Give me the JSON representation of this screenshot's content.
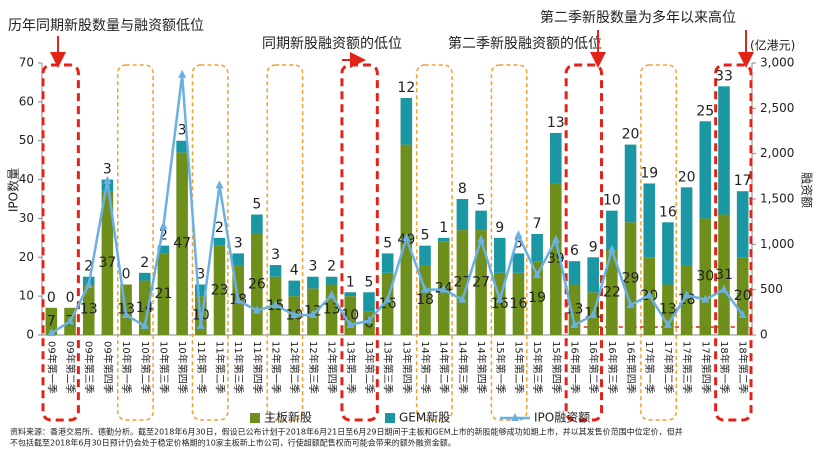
{
  "chart_data": {
    "type": "bar",
    "annotations": [
      "历年同期新股数量与融资额低位",
      "同期新股融资额的低位",
      "第二季新股融资额的低位",
      "第二季新股数量为多年以来高位"
    ],
    "ylabel": "IPO数量",
    "y2label": "融资额",
    "y2unit": "(亿港元)",
    "source": [
      "资料来源：香港交易所、德勤分析。截至2018年6月30日，假设已公布计划于2018年6月21日至6月29日期间于主板和GEM上市的新股能够成功如期上市，并以其发售价范围中位定价，但并",
      "不包括截至2018年6月30日预计仍会处于稳定价格期的10家主板新上市公司，行使超额配售权而可能会带来的额外融资金额。"
    ],
    "categories": [
      "09年第一季",
      "09年第二季",
      "09年第三季",
      "09年第四季",
      "10年第一季",
      "10年第二季",
      "10年第三季",
      "10年第四季",
      "11年第一季",
      "11年第二季",
      "11年第三季",
      "11年第四季",
      "12年第一季",
      "12年第二季",
      "12年第三季",
      "12年第四季",
      "13年第一季",
      "13年第二季",
      "13年第三季",
      "13年第四季",
      "14年第一季",
      "14年第二季",
      "14年第三季",
      "14年第四季",
      "15年第一季",
      "15年第二季",
      "15年第三季",
      "15年第四季",
      "16年第一季",
      "16年第二季",
      "16年第三季",
      "16年第四季",
      "17年第一季",
      "17年第二季",
      "17年第三季",
      "17年第四季",
      "18年第一季",
      "18年第二季"
    ],
    "series": [
      {
        "name": "主板新股",
        "color": "#6f8f1c",
        "values": [
          7,
          7,
          13,
          37,
          13,
          14,
          21,
          47,
          10,
          23,
          18,
          26,
          15,
          10,
          12,
          13,
          10,
          6,
          16,
          49,
          18,
          24,
          27,
          27,
          16,
          16,
          19,
          39,
          13,
          11,
          22,
          29,
          20,
          13,
          18,
          30,
          31,
          20
        ]
      },
      {
        "name": "GEM新股",
        "color": "#1a97a3",
        "values": [
          0,
          0,
          2,
          3,
          0,
          2,
          2,
          3,
          3,
          2,
          3,
          5,
          3,
          4,
          3,
          2,
          1,
          5,
          5,
          12,
          5,
          1,
          8,
          5,
          9,
          5,
          7,
          13,
          6,
          9,
          10,
          20,
          19,
          16,
          20,
          25,
          33,
          17
        ]
      },
      {
        "name": "IPO融资额",
        "color": "#6bb0e3",
        "axis": "y2",
        "type": "line",
        "values": [
          20,
          150,
          550,
          1700,
          220,
          100,
          1200,
          2870,
          100,
          1650,
          380,
          270,
          330,
          220,
          220,
          440,
          110,
          160,
          390,
          1070,
          500,
          500,
          390,
          1050,
          390,
          1100,
          660,
          1050,
          110,
          220,
          940,
          330,
          440,
          110,
          440,
          390,
          500,
          220
        ]
      }
    ],
    "ylim": [
      0,
      70
    ],
    "yticks": [
      0,
      10,
      20,
      30,
      40,
      50,
      60,
      70
    ],
    "y2lim": [
      0,
      3000
    ],
    "y2ticks": [
      0,
      500,
      {
        "value": 1000,
        "label": "1,000"
      },
      {
        "value": 1500,
        "label": "1,500"
      },
      {
        "value": 2000,
        "label": "2,000"
      },
      {
        "value": 2500,
        "label": "2,500"
      },
      {
        "value": 3000,
        "label": "3,000"
      }
    ]
  }
}
